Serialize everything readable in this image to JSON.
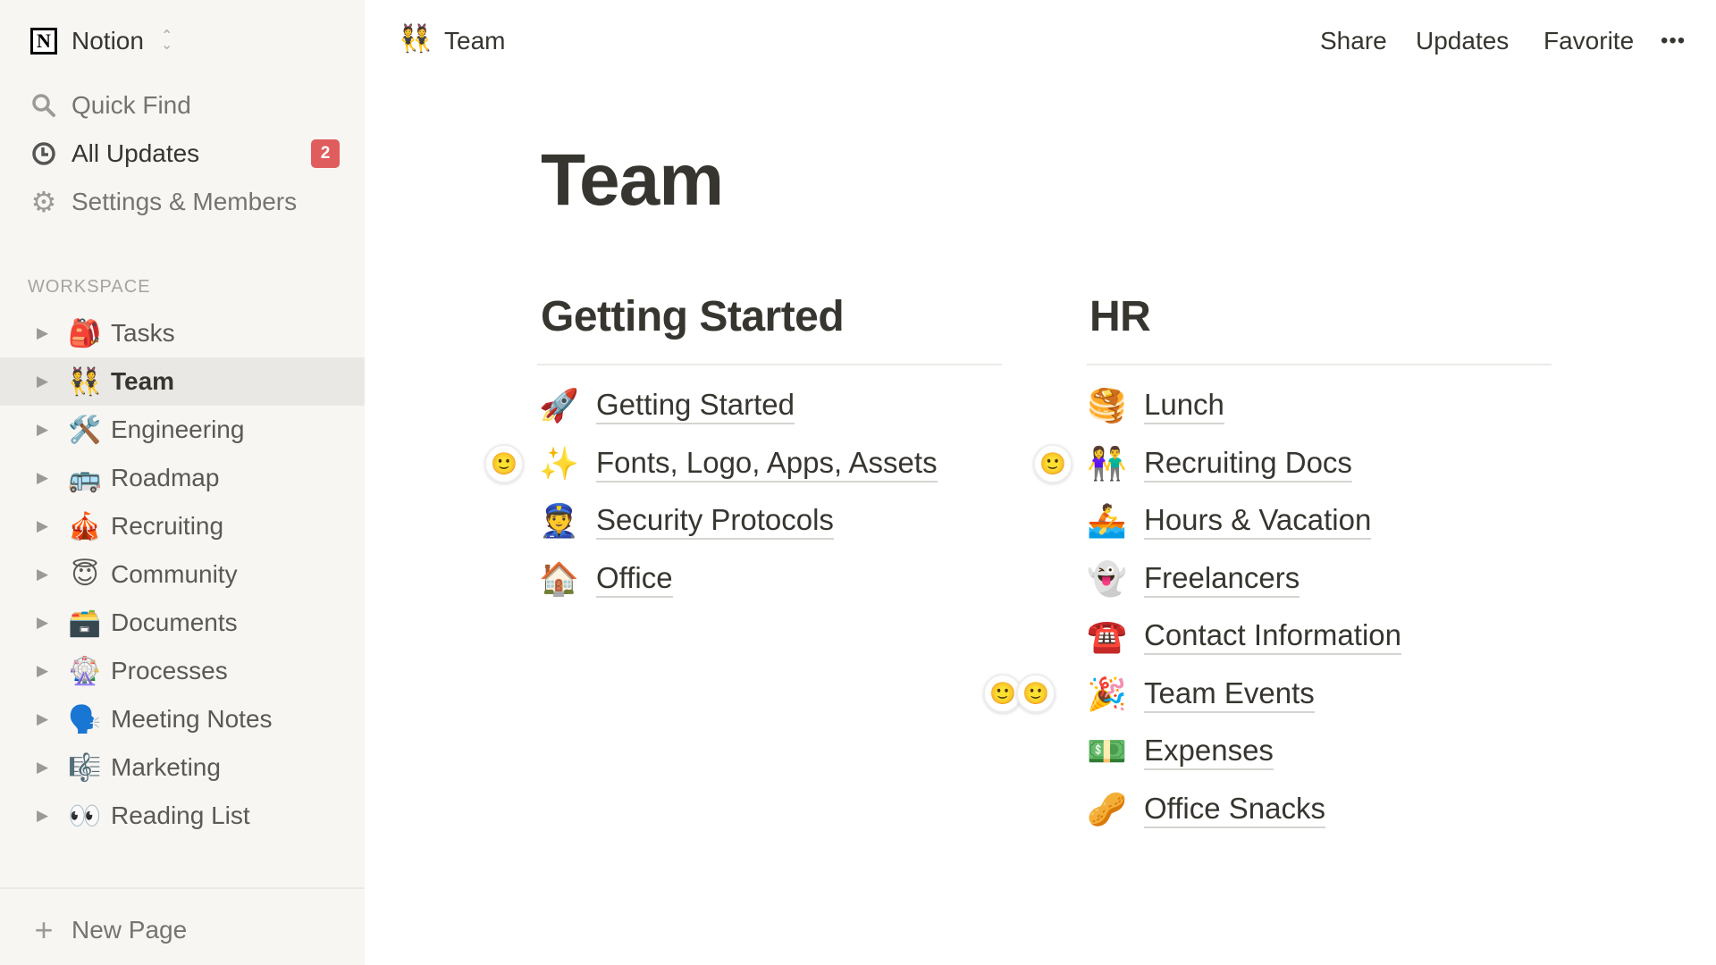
{
  "sidebar": {
    "workspace_name": "Notion",
    "quick_find": "Quick Find",
    "all_updates": "All Updates",
    "updates_badge": "2",
    "settings": "Settings & Members",
    "section_label": "WORKSPACE",
    "pages": [
      {
        "emoji": "🎒",
        "label": "Tasks"
      },
      {
        "emoji": "👯",
        "label": "Team",
        "selected": true
      },
      {
        "emoji": "🛠️",
        "label": "Engineering"
      },
      {
        "emoji": "🚌",
        "label": "Roadmap"
      },
      {
        "emoji": "🎪",
        "label": "Recruiting"
      },
      {
        "emoji": "😇",
        "label": "Community"
      },
      {
        "emoji": "🗃️",
        "label": "Documents"
      },
      {
        "emoji": "🎡",
        "label": "Processes"
      },
      {
        "emoji": "🗣️",
        "label": "Meeting Notes"
      },
      {
        "emoji": "🎼",
        "label": "Marketing"
      },
      {
        "emoji": "👀",
        "label": "Reading List"
      }
    ],
    "new_page": "New Page"
  },
  "topbar": {
    "page_emoji": "👯",
    "page_title": "Team",
    "share": "Share",
    "updates": "Updates",
    "favorite": "Favorite",
    "more": "•••"
  },
  "page": {
    "title": "Team",
    "columns": [
      {
        "heading": "Getting Started",
        "items": [
          {
            "emoji": "🚀",
            "label": "Getting Started"
          },
          {
            "emoji": "✨",
            "label": "Fonts, Logo, Apps, Assets"
          },
          {
            "emoji": "👮",
            "label": "Security Protocols"
          },
          {
            "emoji": "🏠",
            "label": "Office"
          }
        ]
      },
      {
        "heading": "HR",
        "items": [
          {
            "emoji": "🥞",
            "label": "Lunch"
          },
          {
            "emoji": "👫",
            "label": "Recruiting Docs"
          },
          {
            "emoji": "🚣",
            "label": "Hours & Vacation"
          },
          {
            "emoji": "👻",
            "label": "Freelancers"
          },
          {
            "emoji": "☎️",
            "label": "Contact Information"
          },
          {
            "emoji": "🎉",
            "label": "Team Events"
          },
          {
            "emoji": "💵",
            "label": "Expenses"
          },
          {
            "emoji": "🥜",
            "label": "Office Snacks"
          }
        ]
      }
    ],
    "accent_badge_color": "#e05d5d"
  }
}
